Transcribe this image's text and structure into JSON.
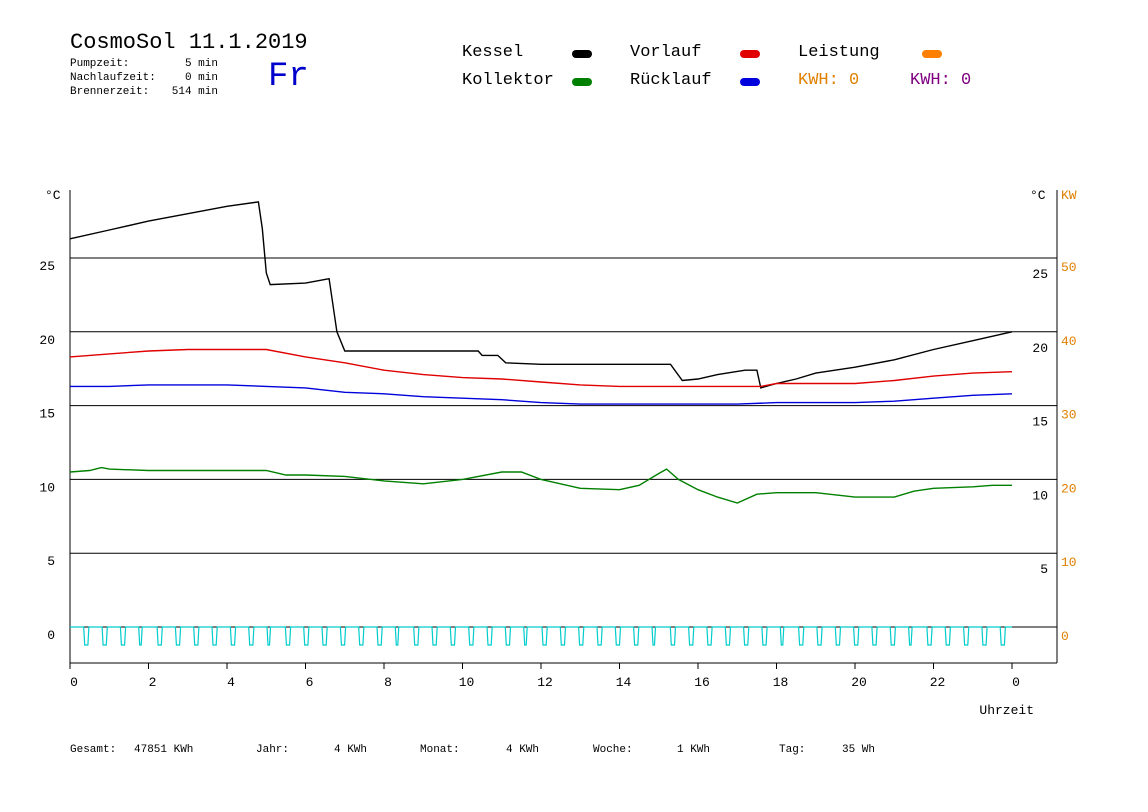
{
  "header": {
    "title": "CosmoSol 11.1.2019",
    "day": "Fr",
    "stats": [
      {
        "label": "Pumpzeit:",
        "value": "5 min"
      },
      {
        "label": "Nachlaufzeit:",
        "value": "0 min"
      },
      {
        "label": "Brennerzeit:",
        "value": "514 min"
      }
    ]
  },
  "legend": {
    "items": [
      {
        "label": "Kessel",
        "color": "#000000"
      },
      {
        "label": "Vorlauf",
        "color": "#e00000"
      },
      {
        "label": "Leistung",
        "color": "#ff8000"
      },
      {
        "label": "Kollektor",
        "color": "#008000"
      },
      {
        "label": "Rücklauf",
        "color": "#0000dd"
      }
    ],
    "kwh_orange": "KWH: 0",
    "kwh_purple": "KWH: 0",
    "kwh_orange_color": "#e08000",
    "kwh_purple_color": "#800080"
  },
  "footer": {
    "gesamt_label": "Gesamt:",
    "gesamt_value": "47851 KWh",
    "jahr_label": "Jahr:",
    "jahr_value": "4 KWh",
    "monat_label": "Monat:",
    "monat_value": "4 KWh",
    "woche_label": "Woche:",
    "woche_value": "1 KWh",
    "tag_label": "Tag:",
    "tag_value": "35 Wh"
  },
  "chart_data": {
    "type": "line",
    "xlabel": "Uhrzeit",
    "ylabel_left": "°C",
    "ylabel_right": "°C",
    "ylabel_right2": "KW",
    "xlim": [
      0,
      24
    ],
    "ylim_left": [
      -2,
      30
    ],
    "x_ticks": [
      "0",
      "2",
      "4",
      "6",
      "8",
      "10",
      "12",
      "14",
      "16",
      "18",
      "20",
      "22",
      "0"
    ],
    "y_ticks_left": [
      "0",
      "5",
      "10",
      "15",
      "20",
      "25"
    ],
    "y_ticks_right": [
      "5",
      "10",
      "15",
      "20",
      "25"
    ],
    "y_ticks_kw": [
      "0",
      "10",
      "20",
      "30",
      "40",
      "50"
    ],
    "grid_y": true,
    "series": [
      {
        "name": "Kessel",
        "color": "#000000",
        "points": [
          [
            0,
            26.3
          ],
          [
            1,
            26.9
          ],
          [
            2,
            27.5
          ],
          [
            3,
            28
          ],
          [
            4,
            28.5
          ],
          [
            4.8,
            28.8
          ],
          [
            4.9,
            27
          ],
          [
            5.0,
            24
          ],
          [
            5.1,
            23.2
          ],
          [
            6,
            23.3
          ],
          [
            6.6,
            23.6
          ],
          [
            6.8,
            20
          ],
          [
            7,
            18.7
          ],
          [
            8,
            18.7
          ],
          [
            9,
            18.7
          ],
          [
            10,
            18.7
          ],
          [
            10.4,
            18.7
          ],
          [
            10.5,
            18.4
          ],
          [
            10.9,
            18.4
          ],
          [
            11.1,
            17.9
          ],
          [
            12,
            17.8
          ],
          [
            14,
            17.8
          ],
          [
            15.3,
            17.8
          ],
          [
            15.6,
            16.7
          ],
          [
            16,
            16.8
          ],
          [
            16.5,
            17.1
          ],
          [
            17.2,
            17.4
          ],
          [
            17.5,
            17.4
          ],
          [
            17.6,
            16.2
          ],
          [
            18,
            16.5
          ],
          [
            18.5,
            16.8
          ],
          [
            19,
            17.2
          ],
          [
            20,
            17.6
          ],
          [
            21,
            18.1
          ],
          [
            22,
            18.8
          ],
          [
            23,
            19.4
          ],
          [
            24,
            20.0
          ]
        ]
      },
      {
        "name": "Vorlauf",
        "color": "#e00000",
        "points": [
          [
            0,
            18.3
          ],
          [
            1,
            18.5
          ],
          [
            2,
            18.7
          ],
          [
            3,
            18.8
          ],
          [
            4,
            18.8
          ],
          [
            5,
            18.8
          ],
          [
            6,
            18.3
          ],
          [
            7,
            17.9
          ],
          [
            8,
            17.4
          ],
          [
            9,
            17.1
          ],
          [
            10,
            16.9
          ],
          [
            11,
            16.8
          ],
          [
            12,
            16.6
          ],
          [
            13,
            16.4
          ],
          [
            14,
            16.3
          ],
          [
            15,
            16.3
          ],
          [
            16,
            16.3
          ],
          [
            17,
            16.3
          ],
          [
            17.6,
            16.3
          ],
          [
            18,
            16.5
          ],
          [
            19,
            16.5
          ],
          [
            20,
            16.5
          ],
          [
            21,
            16.7
          ],
          [
            22,
            17.0
          ],
          [
            23,
            17.2
          ],
          [
            24,
            17.3
          ]
        ]
      },
      {
        "name": "Rücklauf",
        "color": "#0000dd",
        "points": [
          [
            0,
            16.3
          ],
          [
            1,
            16.3
          ],
          [
            2,
            16.4
          ],
          [
            3,
            16.4
          ],
          [
            4,
            16.4
          ],
          [
            5,
            16.3
          ],
          [
            6,
            16.2
          ],
          [
            7,
            15.9
          ],
          [
            8,
            15.8
          ],
          [
            9,
            15.6
          ],
          [
            10,
            15.5
          ],
          [
            11,
            15.4
          ],
          [
            12,
            15.2
          ],
          [
            13,
            15.1
          ],
          [
            14,
            15.1
          ],
          [
            15,
            15.1
          ],
          [
            16,
            15.1
          ],
          [
            17,
            15.1
          ],
          [
            18,
            15.2
          ],
          [
            19,
            15.2
          ],
          [
            20,
            15.2
          ],
          [
            21,
            15.3
          ],
          [
            22,
            15.5
          ],
          [
            23,
            15.7
          ],
          [
            24,
            15.8
          ]
        ]
      },
      {
        "name": "Kollektor",
        "color": "#008000",
        "points": [
          [
            0,
            10.5
          ],
          [
            0.5,
            10.6
          ],
          [
            0.8,
            10.8
          ],
          [
            1,
            10.7
          ],
          [
            2,
            10.6
          ],
          [
            3,
            10.6
          ],
          [
            4,
            10.6
          ],
          [
            5,
            10.6
          ],
          [
            5.5,
            10.3
          ],
          [
            6,
            10.3
          ],
          [
            7,
            10.2
          ],
          [
            8,
            9.9
          ],
          [
            9,
            9.7
          ],
          [
            10,
            10.0
          ],
          [
            11,
            10.5
          ],
          [
            11.5,
            10.5
          ],
          [
            12,
            10.0
          ],
          [
            13,
            9.4
          ],
          [
            14,
            9.3
          ],
          [
            14.5,
            9.6
          ],
          [
            15,
            10.4
          ],
          [
            15.2,
            10.7
          ],
          [
            15.5,
            10.0
          ],
          [
            16,
            9.3
          ],
          [
            16.5,
            8.8
          ],
          [
            17,
            8.4
          ],
          [
            17.5,
            9.0
          ],
          [
            18,
            9.1
          ],
          [
            19,
            9.1
          ],
          [
            20,
            8.8
          ],
          [
            21,
            8.8
          ],
          [
            21.5,
            9.2
          ],
          [
            22,
            9.4
          ],
          [
            23,
            9.5
          ],
          [
            23.5,
            9.6
          ],
          [
            24,
            9.6
          ]
        ]
      },
      {
        "name": "Leistung",
        "color": "#00cccc",
        "pump_cycles": 51
      }
    ]
  }
}
